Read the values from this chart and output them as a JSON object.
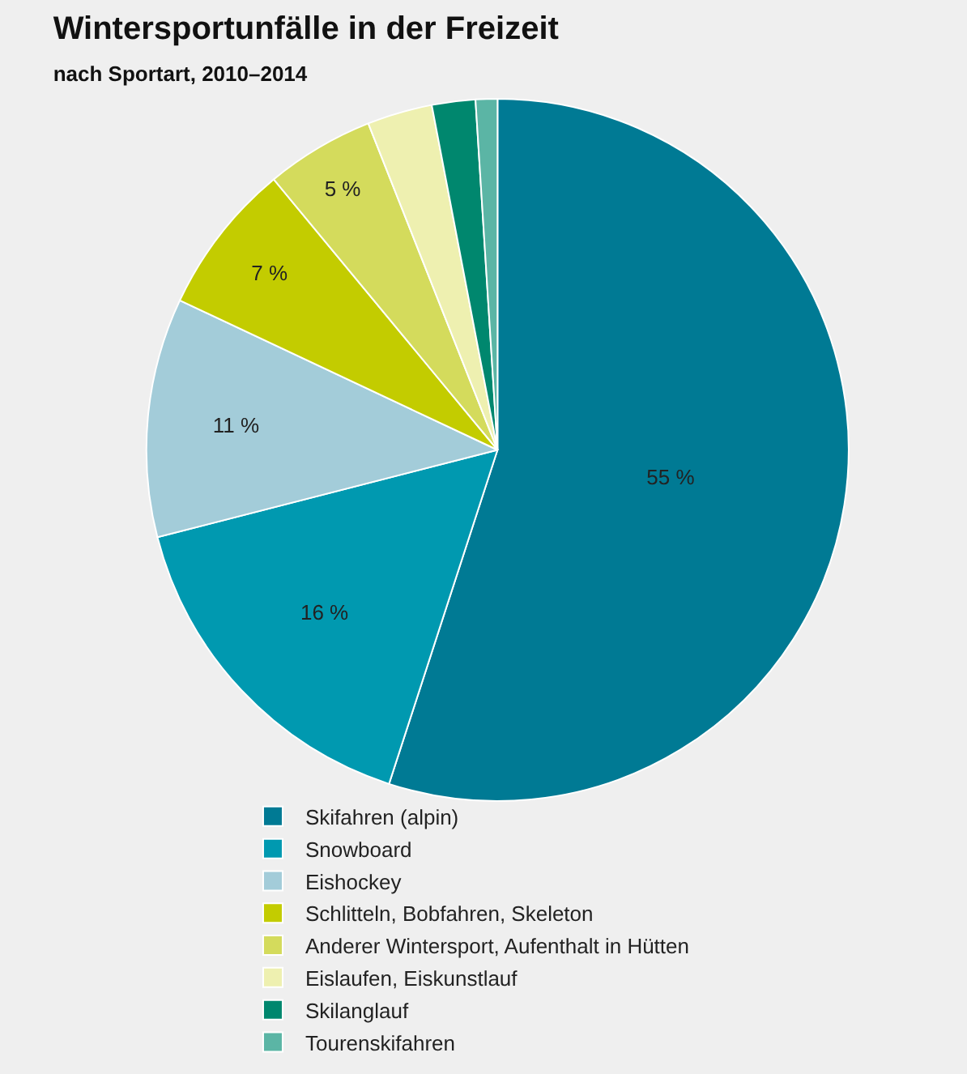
{
  "chart_data": {
    "type": "pie",
    "title": "Wintersportunfälle in der Freizeit",
    "subtitle": "nach Sportart, 2010–2014",
    "categories": [
      "Skifahren (alpin)",
      "Snowboard",
      "Eishockey",
      "Schlitteln, Bobfahren, Skeleton",
      "Anderer Wintersport, Aufenthalt in Hütten",
      "Eislaufen, Eiskunstlauf",
      "Skilanglauf",
      "Tourenskifahren"
    ],
    "values": [
      55,
      16,
      11,
      7,
      5,
      3,
      2,
      1
    ],
    "value_labels": [
      "55 %",
      "16 %",
      "11 %",
      "7 %",
      "5 %",
      null,
      null,
      null
    ],
    "colors": [
      "#007a94",
      "#0099b0",
      "#a3ccd9",
      "#c3cc00",
      "#d4db5c",
      "#eef0b0",
      "#00876e",
      "#5bb5a5"
    ],
    "legend": "bottom"
  }
}
